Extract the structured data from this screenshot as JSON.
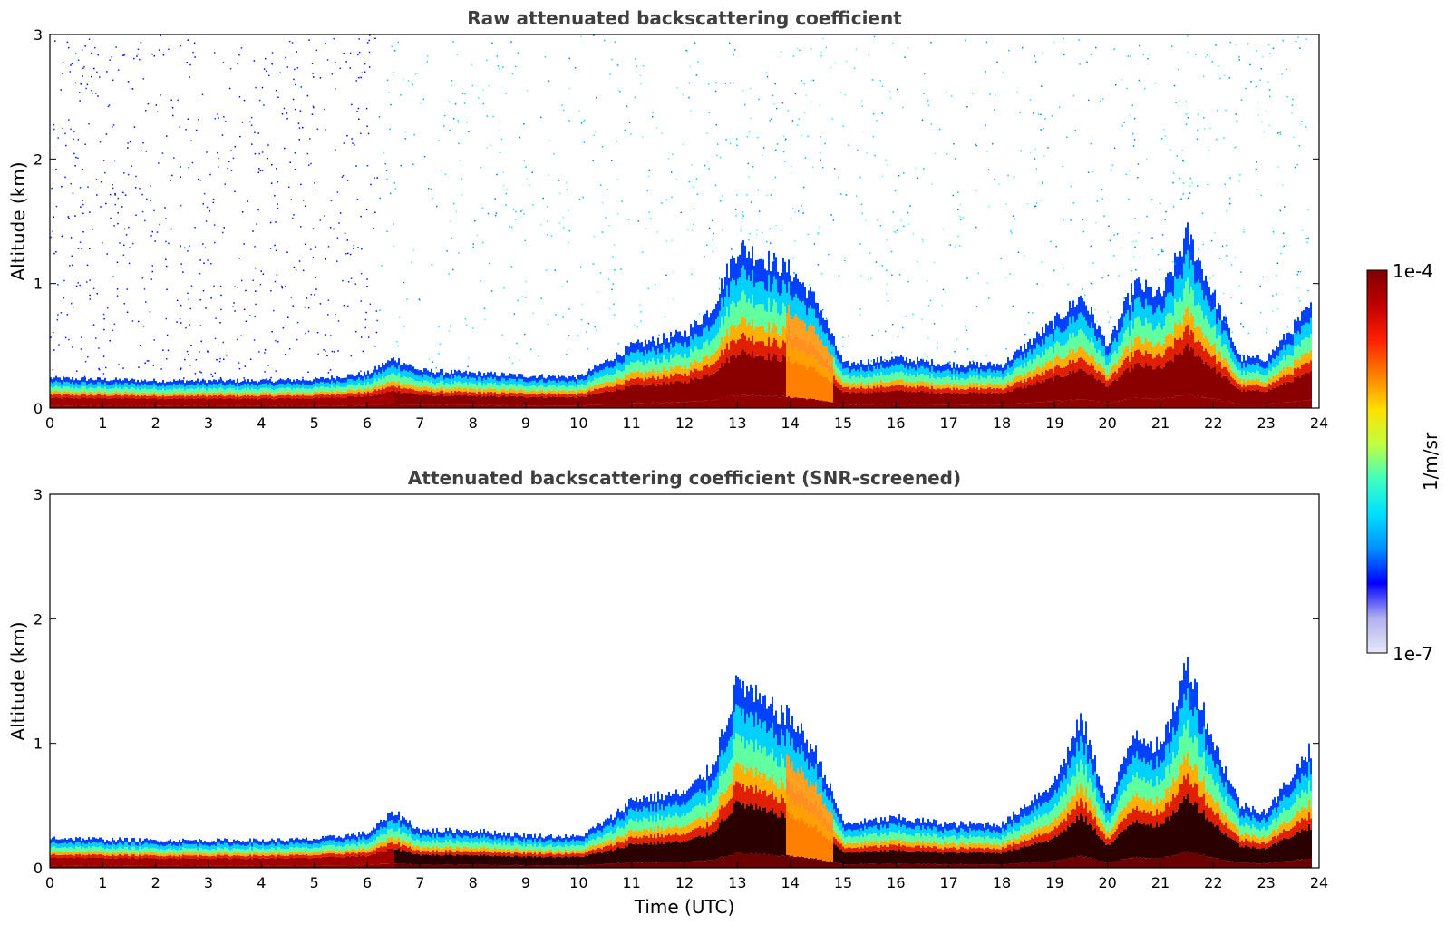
{
  "chart_data": [
    {
      "type": "heatmap",
      "title": "Raw attenuated backscattering coefficient",
      "xlabel": "",
      "ylabel": "Altitude (km)",
      "xlim": [
        0,
        24
      ],
      "ylim": [
        0,
        3
      ],
      "x_ticks": [
        0,
        1,
        2,
        3,
        4,
        5,
        6,
        7,
        8,
        9,
        10,
        11,
        12,
        13,
        14,
        15,
        16,
        17,
        18,
        19,
        20,
        21,
        22,
        23,
        24
      ],
      "y_ticks": [
        0,
        1,
        2,
        3
      ],
      "screened": false,
      "layer_top_km": [
        [
          0,
          0.24
        ],
        [
          1,
          0.23
        ],
        [
          2,
          0.22
        ],
        [
          3,
          0.22
        ],
        [
          4,
          0.22
        ],
        [
          5,
          0.23
        ],
        [
          6,
          0.28
        ],
        [
          6.5,
          0.4
        ],
        [
          7,
          0.3
        ],
        [
          8,
          0.28
        ],
        [
          9,
          0.26
        ],
        [
          10,
          0.25
        ],
        [
          10.6,
          0.4
        ],
        [
          11,
          0.5
        ],
        [
          12,
          0.6
        ],
        [
          12.5,
          0.8
        ],
        [
          13,
          1.3
        ],
        [
          13.5,
          1.2
        ],
        [
          14,
          1.1
        ],
        [
          14.5,
          0.85
        ],
        [
          15,
          0.35
        ],
        [
          16,
          0.4
        ],
        [
          17,
          0.35
        ],
        [
          18,
          0.35
        ],
        [
          19,
          0.7
        ],
        [
          19.5,
          0.9
        ],
        [
          20,
          0.5
        ],
        [
          20.5,
          1.0
        ],
        [
          21,
          0.9
        ],
        [
          21.5,
          1.4
        ],
        [
          22,
          0.9
        ],
        [
          22.5,
          0.4
        ],
        [
          23,
          0.4
        ],
        [
          23.8,
          0.8
        ]
      ]
    },
    {
      "type": "heatmap",
      "title": "Attenuated backscattering coefficient (SNR-screened)",
      "xlabel": "Time (UTC)",
      "ylabel": "Altitude (km)",
      "xlim": [
        0,
        24
      ],
      "ylim": [
        0,
        3
      ],
      "x_ticks": [
        0,
        1,
        2,
        3,
        4,
        5,
        6,
        7,
        8,
        9,
        10,
        11,
        12,
        13,
        14,
        15,
        16,
        17,
        18,
        19,
        20,
        21,
        22,
        23,
        24
      ],
      "y_ticks": [
        0,
        1,
        2,
        3
      ],
      "screened": true,
      "layer_top_km": [
        [
          0,
          0.24
        ],
        [
          1,
          0.23
        ],
        [
          2,
          0.22
        ],
        [
          3,
          0.22
        ],
        [
          4,
          0.22
        ],
        [
          5,
          0.23
        ],
        [
          6,
          0.28
        ],
        [
          6.5,
          0.45
        ],
        [
          7,
          0.3
        ],
        [
          8,
          0.3
        ],
        [
          9,
          0.26
        ],
        [
          10,
          0.25
        ],
        [
          10.6,
          0.4
        ],
        [
          11,
          0.55
        ],
        [
          12,
          0.6
        ],
        [
          12.5,
          0.8
        ],
        [
          13,
          1.5
        ],
        [
          13.5,
          1.3
        ],
        [
          14,
          1.2
        ],
        [
          14.5,
          0.9
        ],
        [
          15,
          0.35
        ],
        [
          16,
          0.4
        ],
        [
          17,
          0.35
        ],
        [
          18,
          0.35
        ],
        [
          19,
          0.7
        ],
        [
          19.5,
          1.2
        ],
        [
          20,
          0.5
        ],
        [
          20.5,
          1.1
        ],
        [
          21,
          0.95
        ],
        [
          21.5,
          1.65
        ],
        [
          22,
          1.0
        ],
        [
          22.5,
          0.5
        ],
        [
          23,
          0.45
        ],
        [
          23.8,
          0.95
        ]
      ]
    }
  ],
  "colorbar": {
    "label": "1/m/sr",
    "max_label": "1e-4",
    "min_label": "1e-7",
    "colors": [
      "#e8e8f8",
      "#b0b0f0",
      "#0000ff",
      "#0090ff",
      "#00e0ff",
      "#40ffc0",
      "#c0ff40",
      "#ffe000",
      "#ff8000",
      "#ff2000",
      "#c00000",
      "#800000"
    ]
  }
}
